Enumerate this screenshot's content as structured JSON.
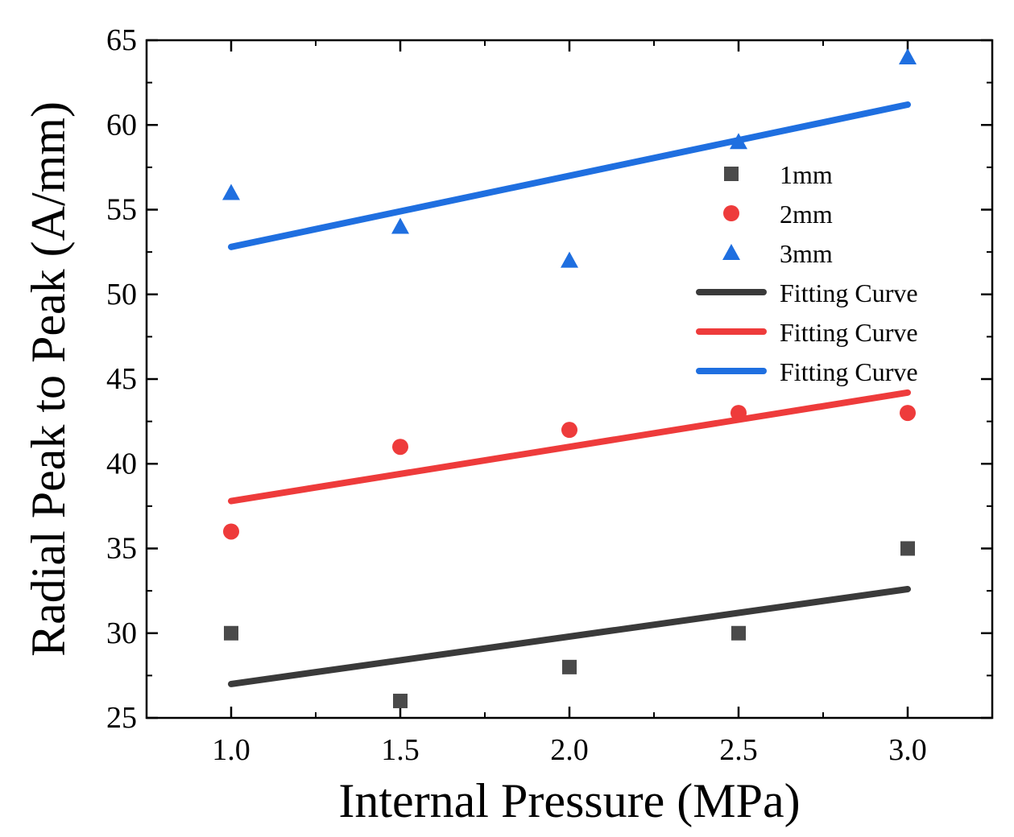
{
  "chart_data": {
    "type": "scatter",
    "title": "",
    "xlabel": "Internal Pressure (MPa)",
    "ylabel": "Radial Peak to Peak (A/mm)",
    "xlim": [
      0.75,
      3.25
    ],
    "ylim": [
      25,
      65
    ],
    "x_ticks": [
      "1.0",
      "1.5",
      "2.0",
      "2.5",
      "3.0"
    ],
    "x_tick_values": [
      1.0,
      1.5,
      2.0,
      2.5,
      3.0
    ],
    "x_minor_ticks": [
      1.25,
      1.75,
      2.25,
      2.75
    ],
    "y_ticks": [
      "25",
      "30",
      "35",
      "40",
      "45",
      "50",
      "55",
      "60",
      "65"
    ],
    "y_tick_values": [
      25,
      30,
      35,
      40,
      45,
      50,
      55,
      60,
      65
    ],
    "grid": false,
    "legend_position": "top-right",
    "x": [
      1.0,
      1.5,
      2.0,
      2.5,
      3.0
    ],
    "series": [
      {
        "name": "1mm",
        "marker": "square",
        "color": "#4a4a4a",
        "values": [
          30,
          26,
          28,
          30,
          35
        ]
      },
      {
        "name": "2mm",
        "marker": "circle",
        "color": "#ee3b3b",
        "values": [
          36,
          41,
          42,
          43,
          43
        ]
      },
      {
        "name": "3mm",
        "marker": "triangle",
        "color": "#1f6fe0",
        "values": [
          56,
          54,
          52,
          59,
          64
        ]
      }
    ],
    "fits": [
      {
        "name": "Fitting Curve",
        "color": "#3a3a3a",
        "x": [
          1.0,
          3.0
        ],
        "values": [
          27.0,
          32.6
        ]
      },
      {
        "name": "Fitting Curve",
        "color": "#ee3b3b",
        "x": [
          1.0,
          3.0
        ],
        "values": [
          37.8,
          44.2
        ]
      },
      {
        "name": "Fitting Curve",
        "color": "#1f6fe0",
        "x": [
          1.0,
          3.0
        ],
        "values": [
          52.8,
          61.2
        ]
      }
    ]
  }
}
